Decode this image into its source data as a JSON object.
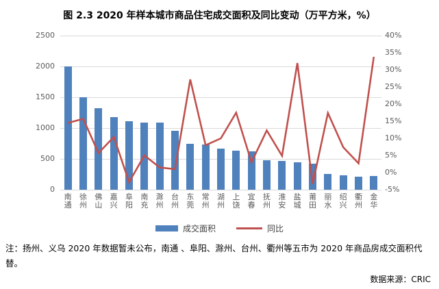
{
  "title": "图 2.3  2020 年样本城市商品住宅成交面积及同比变动（万平方米，%）",
  "legend": {
    "area_label": "成交面积",
    "yoy_label": "同比"
  },
  "note": "注：扬州、义乌 2020 年数据暂未公布，南通 、阜阳、滁州、台州、衢州等五市为 2020 年商品房成交面积代替。",
  "source": "数据来源：CRIC",
  "colors": {
    "bar": "#4F81BD",
    "line": "#C0504D",
    "gridline": "#D9D9D9",
    "axis_text": "#595959"
  },
  "chart_data": {
    "type": "bar",
    "subtype": "bar+line-dual-axis",
    "title": "图 2.3  2020 年样本城市商品住宅成交面积及同比变动（万平方米，%）",
    "categories": [
      "南通",
      "徐州",
      "佛山",
      "嘉兴",
      "阜阳",
      "南充",
      "滁州",
      "台州",
      "东莞",
      "常州",
      "湖州",
      "上饶",
      "宜春",
      "抚州",
      "淮安",
      "盐城",
      "莆田",
      "丽水",
      "绍兴",
      "衢州",
      "金华"
    ],
    "series": [
      {
        "name": "成交面积",
        "type": "bar",
        "axis": "left",
        "unit": "万平方米",
        "values": [
          2000,
          1495,
          1320,
          1175,
          1110,
          1090,
          1090,
          960,
          740,
          730,
          665,
          635,
          625,
          480,
          465,
          440,
          425,
          260,
          230,
          215,
          220
        ]
      },
      {
        "name": "同比",
        "type": "line",
        "axis": "right",
        "unit": "%",
        "values": [
          14.5,
          15.7,
          5.7,
          10.4,
          -2.8,
          5.0,
          1.5,
          1.0,
          27.2,
          8.0,
          10.0,
          17.5,
          3.0,
          12.3,
          4.9,
          32.0,
          -3.3,
          17.4,
          7.4,
          2.7,
          33.8
        ]
      }
    ],
    "left_axis": {
      "min": 0,
      "max": 2500,
      "ticks": [
        0,
        500,
        1000,
        1500,
        2000,
        2500
      ],
      "tick_labels": [
        "0",
        "500",
        "1000",
        "1500",
        "2000",
        "2500"
      ]
    },
    "right_axis": {
      "min": -5,
      "max": 40,
      "ticks": [
        -5,
        0,
        5,
        10,
        15,
        20,
        25,
        30,
        35,
        40
      ],
      "tick_labels": [
        "-5%",
        "0%",
        "5%",
        "10%",
        "15%",
        "20%",
        "25%",
        "30%",
        "35%",
        "40%"
      ]
    },
    "grid": "horizontal",
    "legend_position": "bottom"
  }
}
